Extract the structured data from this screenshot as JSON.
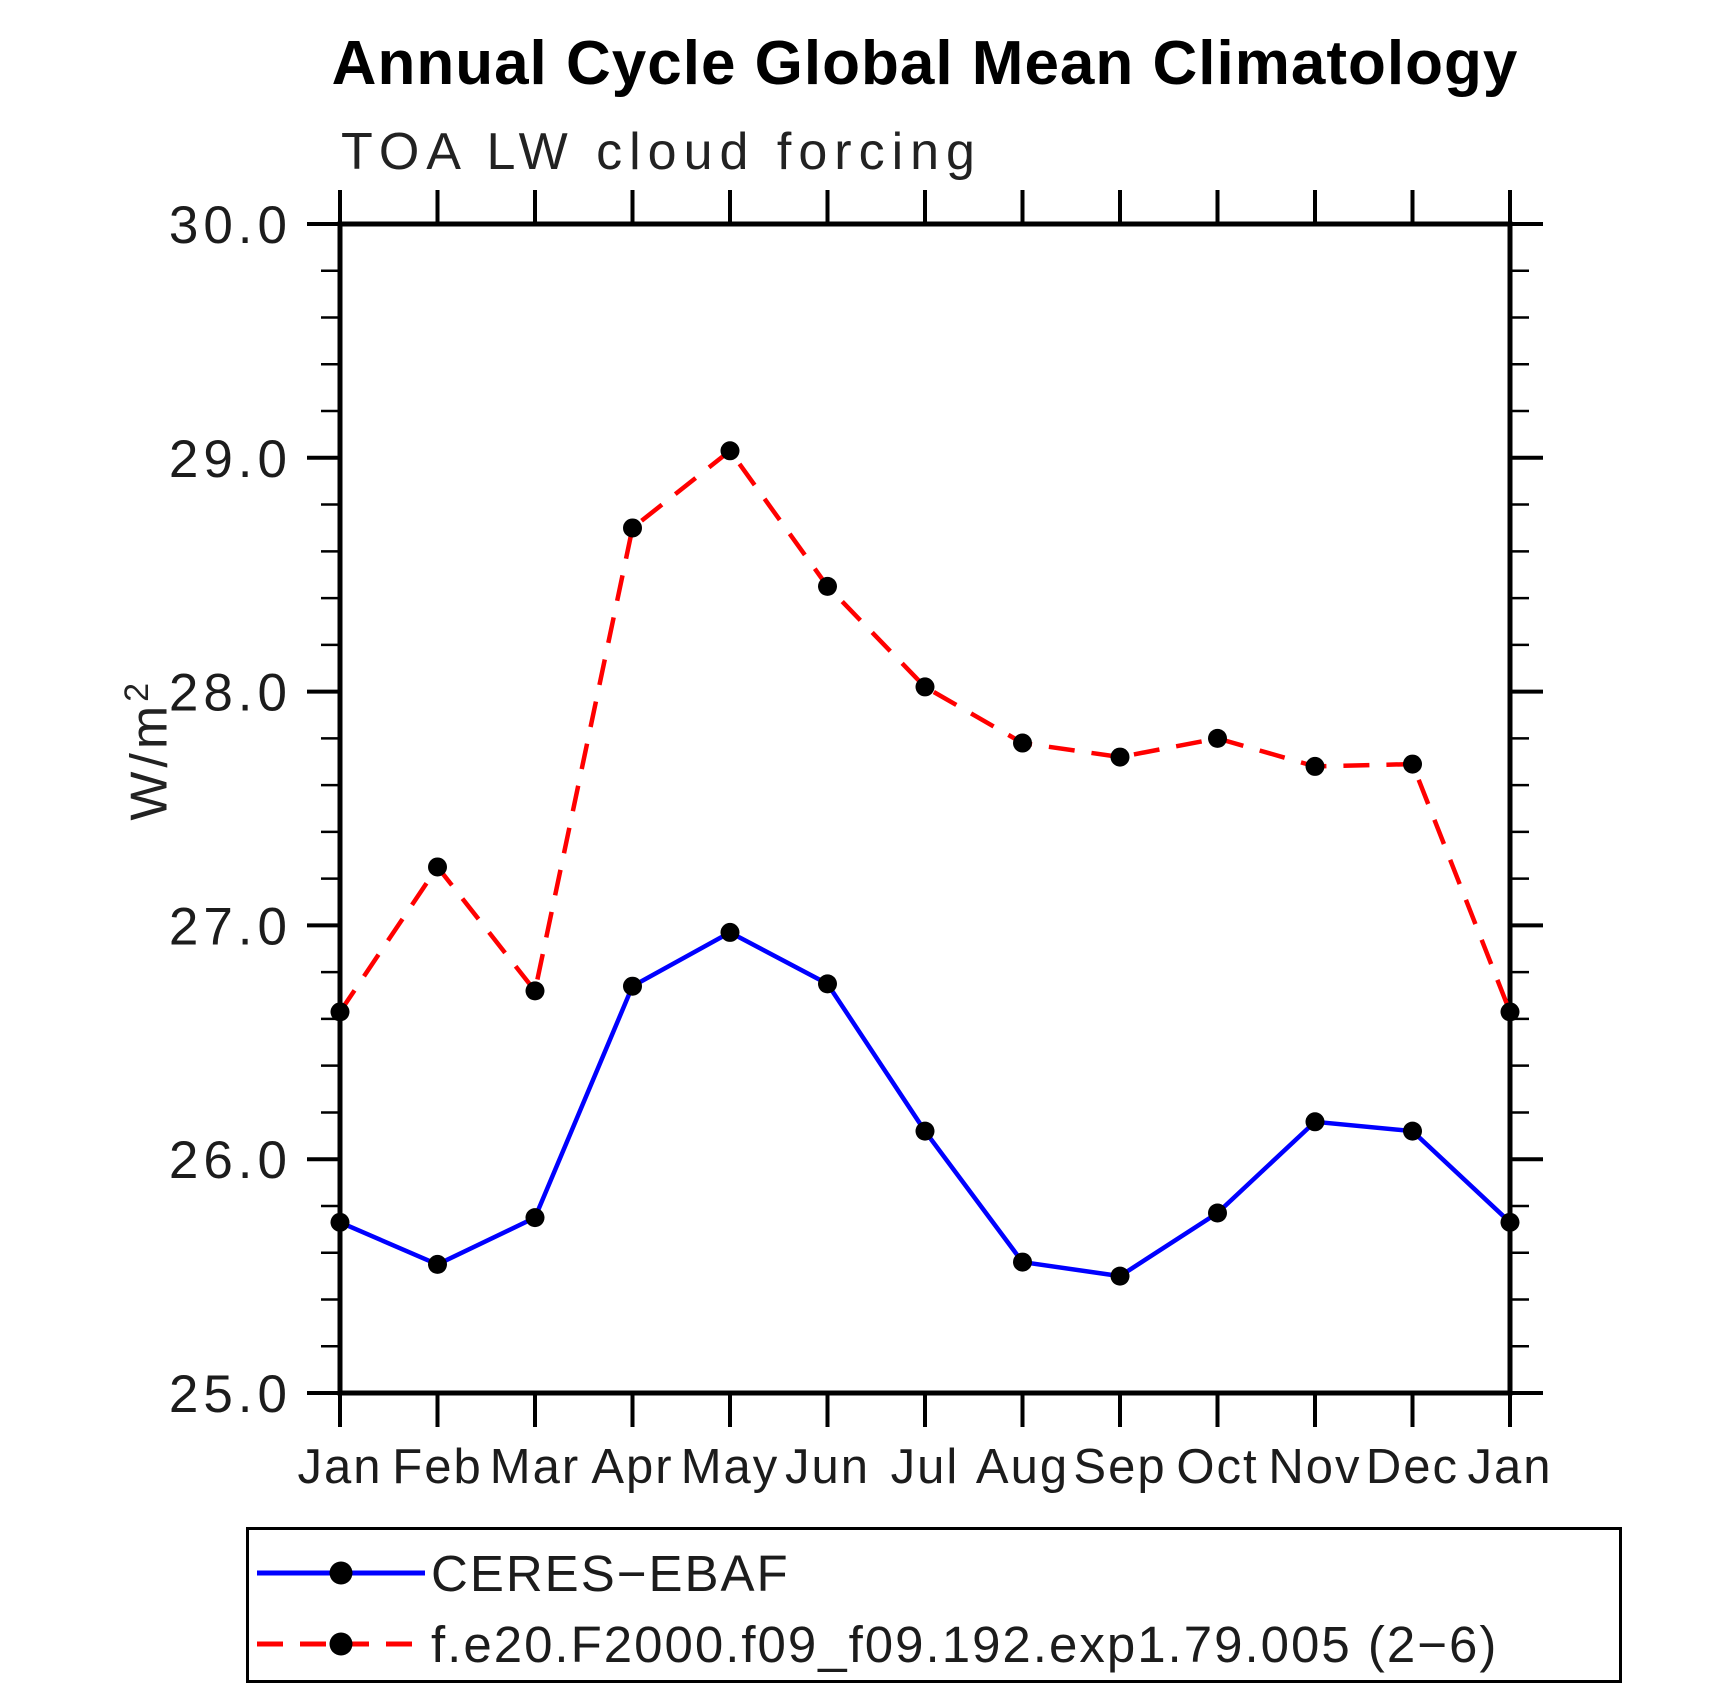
{
  "title": "Annual Cycle Global Mean Climatology",
  "subtitle": "TOA LW cloud forcing",
  "y_axis": {
    "label": "W/m²",
    "label_base": "W/m",
    "label_exp": "2",
    "tick_labels": [
      "30.0",
      "29.0",
      "28.0",
      "27.0",
      "26.0",
      "25.0"
    ]
  },
  "x_axis": {
    "tick_labels": [
      "Jan",
      "Feb",
      "Mar",
      "Apr",
      "May",
      "Jun",
      "Jul",
      "Aug",
      "Sep",
      "Oct",
      "Nov",
      "Dec",
      "Jan"
    ]
  },
  "legend": {
    "entries": [
      {
        "label": "CERES−EBAF",
        "color": "#0000ff",
        "line_style": "solid",
        "marker": "black-dot"
      },
      {
        "label": "f.e20.F2000.f09_f09.192.exp1.79.005 (2−6)",
        "color": "#ff0000",
        "line_style": "dashed",
        "marker": "black-dot"
      }
    ]
  },
  "colors": {
    "ceres_line": "#0000ff",
    "model_line": "#ff0000",
    "marker": "#000000",
    "axis": "#000000",
    "text": "#1c1c1c"
  },
  "chart_data": {
    "type": "line",
    "title": "Annual Cycle Global Mean Climatology",
    "subtitle": "TOA LW cloud forcing",
    "xlabel": "",
    "ylabel": "W/m²",
    "categories": [
      "Jan",
      "Feb",
      "Mar",
      "Apr",
      "May",
      "Jun",
      "Jul",
      "Aug",
      "Sep",
      "Oct",
      "Nov",
      "Dec",
      "Jan"
    ],
    "series": [
      {
        "name": "CERES−EBAF",
        "color": "#0000ff",
        "line_style": "solid",
        "marker": "filled-circle",
        "marker_color": "#000000",
        "values": [
          25.73,
          25.55,
          25.75,
          26.74,
          26.97,
          26.75,
          26.12,
          25.56,
          25.5,
          25.77,
          26.16,
          26.12,
          25.73
        ]
      },
      {
        "name": "f.e20.F2000.f09_f09.192.exp1.79.005 (2−6)",
        "color": "#ff0000",
        "line_style": "dashed",
        "marker": "filled-circle",
        "marker_color": "#000000",
        "values": [
          26.63,
          27.25,
          26.72,
          28.7,
          29.03,
          28.45,
          28.02,
          27.78,
          27.72,
          27.8,
          27.68,
          27.69,
          26.63
        ]
      }
    ],
    "ylim": [
      25.0,
      30.0
    ],
    "ytick_step": 1.0,
    "yminor_step": 0.2,
    "grid": false,
    "legend_position": "bottom-left"
  }
}
